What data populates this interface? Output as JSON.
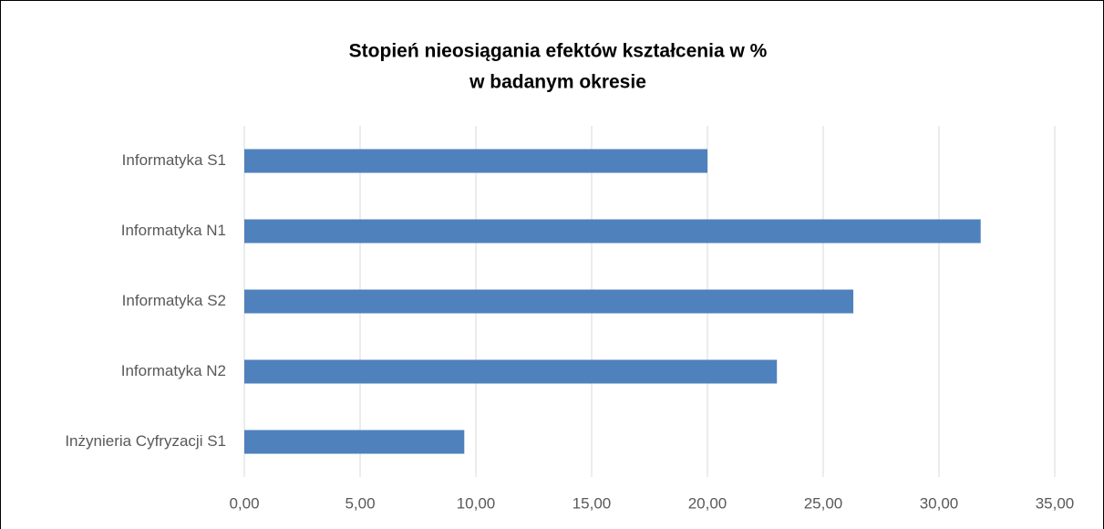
{
  "chart_data": {
    "type": "bar",
    "orientation": "horizontal",
    "title": [
      "Stopień nieosiągania efektów kształcenia w %",
      "w badanym okresie"
    ],
    "categories": [
      "Informatyka S1",
      "Informatyka N1",
      "Informatyka S2",
      "Informatyka N2",
      "Inżynieria Cyfryzacji S1"
    ],
    "values": [
      20.0,
      31.8,
      26.3,
      23.0,
      9.5
    ],
    "color": "#4f81bd",
    "xlim": [
      0,
      35
    ],
    "xticks": [
      {
        "value": 0,
        "label": "0,00"
      },
      {
        "value": 5,
        "label": "5,00"
      },
      {
        "value": 10,
        "label": "10,00"
      },
      {
        "value": 15,
        "label": "15,00"
      },
      {
        "value": 20,
        "label": "20,00"
      },
      {
        "value": 25,
        "label": "25,00"
      },
      {
        "value": 30,
        "label": "30,00"
      },
      {
        "value": 35,
        "label": "35,00"
      }
    ],
    "grid": true
  }
}
